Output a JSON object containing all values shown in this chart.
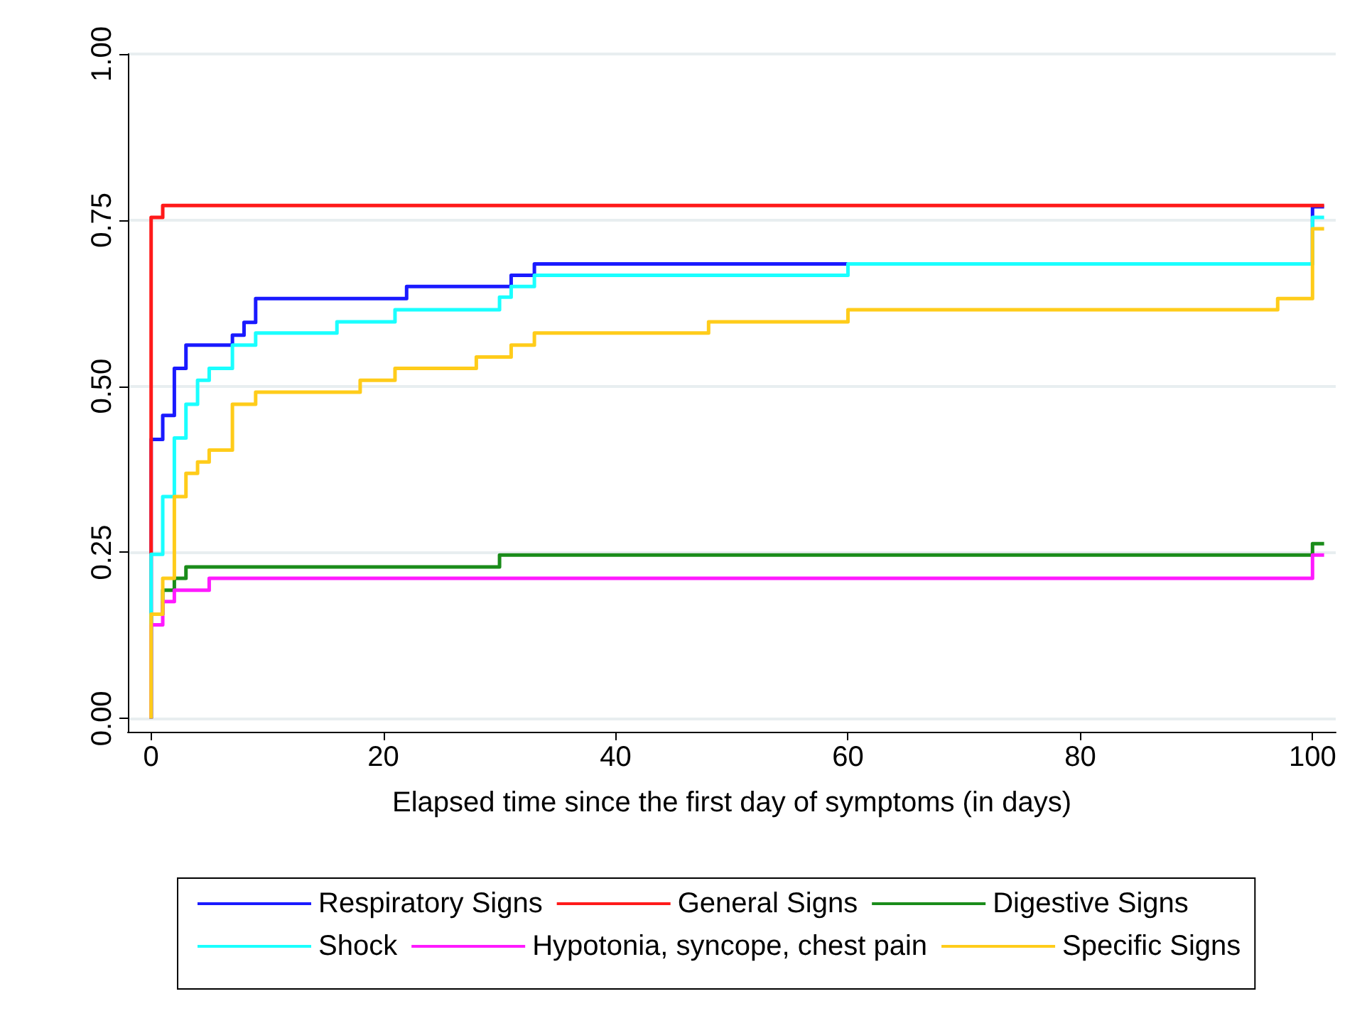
{
  "chart_data": {
    "type": "step",
    "xlabel": "Elapsed time since the first day of symptoms (in days)",
    "xlim": [
      -2,
      102
    ],
    "xticks": [
      0,
      20,
      40,
      60,
      80,
      100
    ],
    "ylim": [
      -0.02,
      1
    ],
    "yticks": [
      {
        "value": 0,
        "label": "0.00"
      },
      {
        "value": 0.25,
        "label": "0.25"
      },
      {
        "value": 0.5,
        "label": "0.50"
      },
      {
        "value": 0.75,
        "label": "0.75"
      },
      {
        "value": 1,
        "label": "1.00"
      }
    ],
    "grid": "y",
    "legend": "bottom",
    "marker": "none",
    "line_style": "solid",
    "series": [
      {
        "name": "Respiratory Signs",
        "color": "#1a1aff",
        "x": [
          0,
          0,
          1,
          2,
          3,
          7,
          8,
          9,
          22,
          31,
          33,
          100,
          101
        ],
        "values": [
          0,
          0.42,
          0.456,
          0.527,
          0.562,
          0.577,
          0.596,
          0.632,
          0.65,
          0.667,
          0.684,
          0.77,
          0.77
        ]
      },
      {
        "name": "General Signs",
        "color": "#ff1a1a",
        "x": [
          0,
          0,
          1,
          101
        ],
        "values": [
          0,
          0.754,
          0.772,
          0.772
        ]
      },
      {
        "name": "Digestive Signs",
        "color": "#1a8c1a",
        "x": [
          0,
          0,
          1,
          2,
          3,
          30,
          100,
          101
        ],
        "values": [
          0,
          0.157,
          0.193,
          0.211,
          0.228,
          0.246,
          0.263,
          0.263
        ]
      },
      {
        "name": "Shock",
        "color": "#1affff",
        "x": [
          0,
          0,
          1,
          2,
          3,
          4,
          5,
          7,
          9,
          16,
          21,
          30,
          31,
          33,
          60,
          100,
          101
        ],
        "values": [
          0,
          0.247,
          0.334,
          0.422,
          0.473,
          0.509,
          0.527,
          0.562,
          0.58,
          0.597,
          0.615,
          0.634,
          0.65,
          0.667,
          0.684,
          0.754,
          0.754
        ]
      },
      {
        "name": "Hypotonia, syncope, chest pain",
        "color": "#ff1aff",
        "x": [
          0,
          0,
          1,
          2,
          5,
          100,
          101
        ],
        "values": [
          0,
          0.141,
          0.176,
          0.193,
          0.211,
          0.246,
          0.246
        ]
      },
      {
        "name": "Specific Signs",
        "color": "#ffcc1a",
        "x": [
          0,
          0,
          1,
          2,
          3,
          4,
          5,
          7,
          9,
          18,
          21,
          28,
          31,
          33,
          48,
          60,
          97,
          100,
          101
        ],
        "values": [
          0,
          0.157,
          0.211,
          0.334,
          0.369,
          0.386,
          0.404,
          0.473,
          0.491,
          0.509,
          0.527,
          0.544,
          0.562,
          0.58,
          0.597,
          0.615,
          0.632,
          0.737,
          0.737
        ]
      }
    ]
  }
}
